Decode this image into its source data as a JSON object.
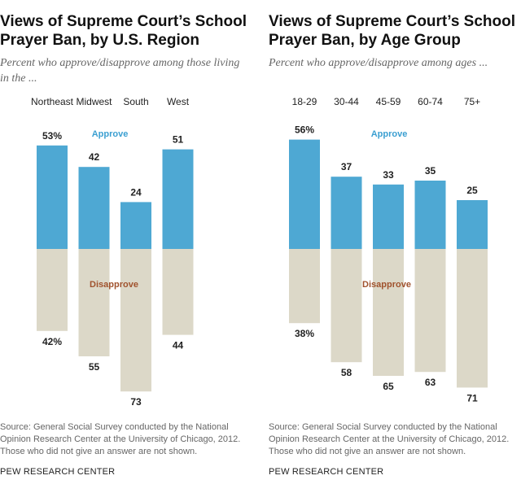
{
  "colors": {
    "approve": "#4ea8d3",
    "disapprove": "#dcd8c8",
    "approve_label": "#3b9fd1",
    "disapprove_label": "#a0522d"
  },
  "source_text": "Source: General Social Survey conducted by the National Opinion Research Center at the University of Chicago, 2012. Those who did not give an answer are not shown.",
  "org": "PEW RESEARCH CENTER",
  "chart_data": [
    {
      "type": "bar",
      "title": "Views of Supreme Court’s School Prayer Ban, by U.S. Region",
      "subtitle": "Percent who approve/disapprove among those living in the ...",
      "categories": [
        "Northeast",
        "Midwest",
        "South",
        "West"
      ],
      "series": [
        {
          "name": "Approve",
          "values": [
            53,
            42,
            24,
            51
          ],
          "labels": [
            "53%",
            "42",
            "24",
            "51"
          ]
        },
        {
          "name": "Disapprove",
          "values": [
            42,
            55,
            73,
            44
          ],
          "labels": [
            "42%",
            "55",
            "73",
            "44"
          ]
        }
      ]
    },
    {
      "type": "bar",
      "title": "Views of Supreme Court’s School Prayer Ban, by Age Group",
      "subtitle": "Percent who approve/disapprove among ages ...",
      "categories": [
        "18-29",
        "30-44",
        "45-59",
        "60-74",
        "75+"
      ],
      "series": [
        {
          "name": "Approve",
          "values": [
            56,
            37,
            33,
            35,
            25
          ],
          "labels": [
            "56%",
            "37",
            "33",
            "35",
            "25"
          ]
        },
        {
          "name": "Disapprove",
          "values": [
            38,
            58,
            65,
            63,
            71
          ],
          "labels": [
            "38%",
            "58",
            "65",
            "63",
            "71"
          ]
        }
      ]
    }
  ]
}
